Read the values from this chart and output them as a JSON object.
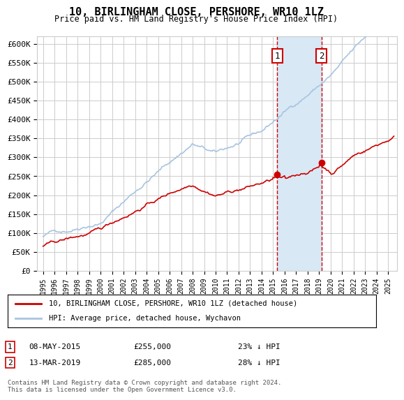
{
  "title": "10, BIRLINGHAM CLOSE, PERSHORE, WR10 1LZ",
  "subtitle": "Price paid vs. HM Land Registry's House Price Index (HPI)",
  "ylabel_ticks": [
    "£0",
    "£50K",
    "£100K",
    "£150K",
    "£200K",
    "£250K",
    "£300K",
    "£350K",
    "£400K",
    "£450K",
    "£500K",
    "£550K",
    "£600K"
  ],
  "ylim": [
    0,
    620000
  ],
  "yticks": [
    0,
    50000,
    100000,
    150000,
    200000,
    250000,
    300000,
    350000,
    400000,
    450000,
    500000,
    550000,
    600000
  ],
  "hpi_color": "#a8c4e0",
  "price_color": "#cc0000",
  "marker_color": "#cc0000",
  "sale1_year": 2015.35,
  "sale1_price": 255000,
  "sale2_year": 2019.2,
  "sale2_price": 285000,
  "legend_label_red": "10, BIRLINGHAM CLOSE, PERSHORE, WR10 1LZ (detached house)",
  "legend_label_blue": "HPI: Average price, detached house, Wychavon",
  "note1_date": "08-MAY-2015",
  "note1_price": "£255,000",
  "note1_pct": "23% ↓ HPI",
  "note2_date": "13-MAR-2019",
  "note2_price": "£285,000",
  "note2_pct": "28% ↓ HPI",
  "footer": "Contains HM Land Registry data © Crown copyright and database right 2024.\nThis data is licensed under the Open Government Licence v3.0.",
  "background_color": "#ffffff",
  "grid_color": "#cccccc",
  "shaded_region_color": "#d8e8f5"
}
